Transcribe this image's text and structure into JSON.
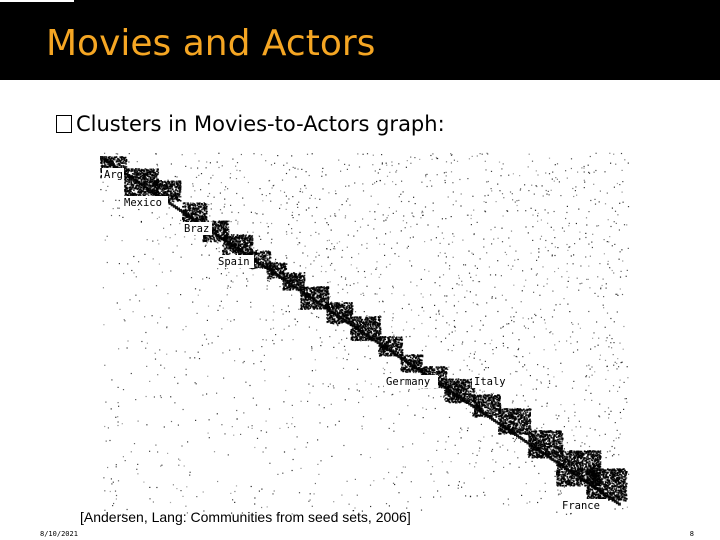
{
  "slide": {
    "title": "Movies and Actors",
    "bullet_text": "Clusters in Movies-to-Actors graph:",
    "citation": "[Andersen, Lang: Communities from seed sets, 2006]",
    "date": "8/10/2021",
    "page_number": "8"
  },
  "figure": {
    "labels": [
      "Arg",
      "Mexico",
      "Braz",
      "Spain",
      "Germany",
      "Italy",
      "France"
    ]
  },
  "colors": {
    "title_bar": "#000000",
    "title_text": "#f5a623",
    "body_text": "#000000",
    "background": "#ffffff"
  },
  "icons": {
    "bullet": "square-bullet-icon"
  }
}
